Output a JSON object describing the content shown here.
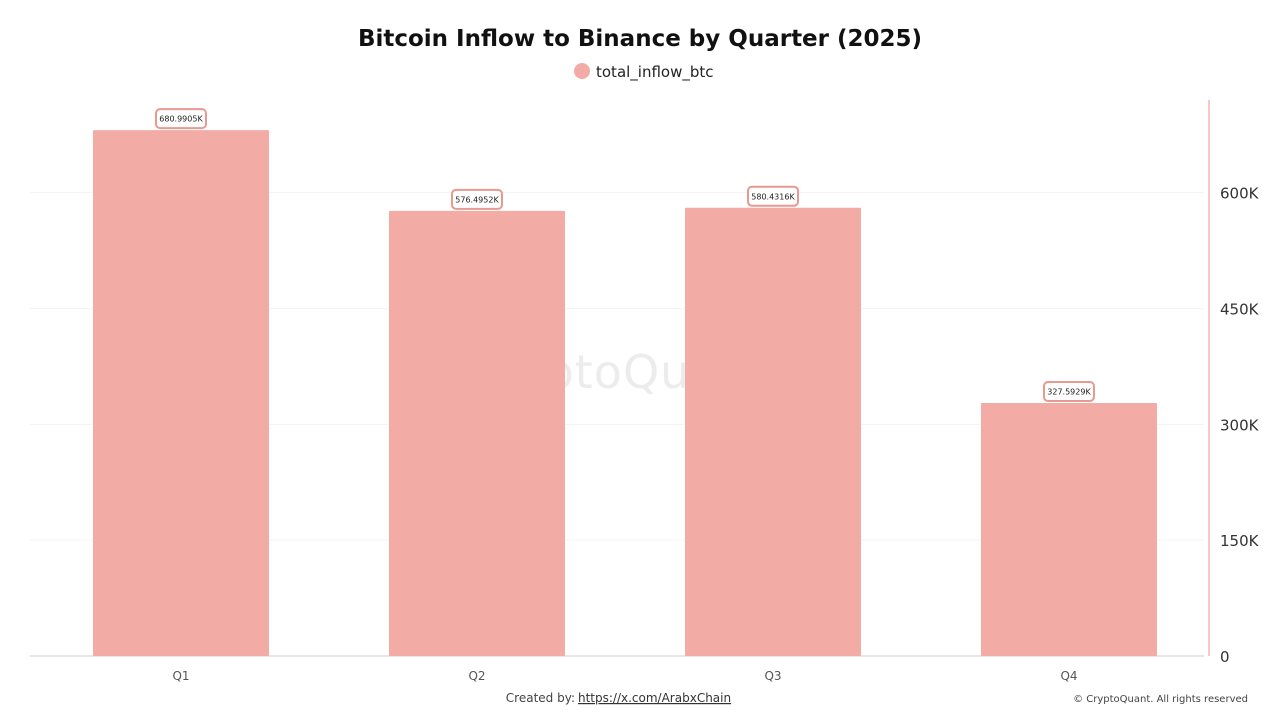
{
  "chart_data": {
    "type": "bar",
    "title": "Bitcoin Inflow to Binance by Quarter (2025)",
    "legend": {
      "position": "top-center",
      "entries": [
        {
          "name": "total_inflow_btc",
          "color": "#f2aca5"
        }
      ]
    },
    "categories": [
      "Q1",
      "Q2",
      "Q3",
      "Q4"
    ],
    "series": [
      {
        "name": "total_inflow_btc",
        "color": "#f2aca5",
        "values": [
          680990.5,
          576495.2,
          580431.6,
          327592.9
        ],
        "data_labels": [
          "680.9905K",
          "576.4952K",
          "580.4316K",
          "327.5929K"
        ]
      }
    ],
    "y_axis": {
      "position": "right",
      "ylim": [
        0,
        720000
      ],
      "ticks": [
        0,
        150000,
        300000,
        450000,
        600000
      ],
      "tick_labels": [
        "0",
        "150K",
        "300K",
        "450K",
        "600K"
      ]
    },
    "grid": true,
    "watermark": "CryptoQuant"
  },
  "footer": {
    "created_by_label": "Created by:",
    "created_by_link": "https://x.com/ArabxChain",
    "copyright": "© CryptoQuant. All rights reserved"
  },
  "colors": {
    "bar": "#f2aca5",
    "label_border": "#e89990",
    "axis_line": "#f4b8b2",
    "grid": "#f3f3f3",
    "baseline": "#cccccc"
  }
}
